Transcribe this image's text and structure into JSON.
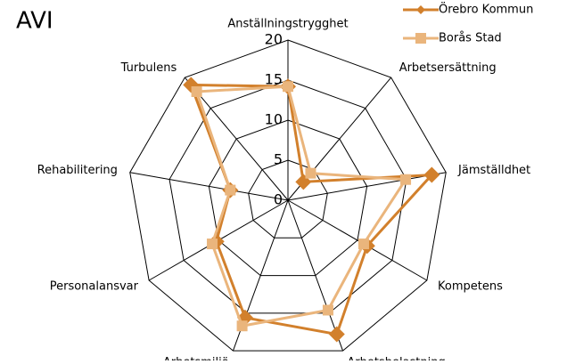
{
  "chart_data": {
    "type": "radar",
    "title": "AVI",
    "categories": [
      "Anställningstrygghet",
      "Arbetsersättning",
      "Jämställdhet",
      "Kompetens",
      "Arbetsbelastning",
      "Arbetsmiljö",
      "Personalansvar",
      "Rehabilitering",
      "Turbulens"
    ],
    "series": [
      {
        "name": "Örebro Kommun",
        "color": "#d2802c",
        "values": [
          14.2,
          3,
          18.2,
          11.4,
          17.8,
          15.6,
          10.3,
          7.3,
          18.8
        ]
      },
      {
        "name": "Borås Stad",
        "color": "#eab57c",
        "values": [
          14.2,
          4.4,
          14.9,
          10.9,
          14.6,
          16.7,
          10.9,
          7.3,
          17.7
        ]
      }
    ],
    "ylim": [
      0,
      20
    ],
    "yticks": [
      0,
      5,
      10,
      15,
      20
    ],
    "grid": true
  }
}
